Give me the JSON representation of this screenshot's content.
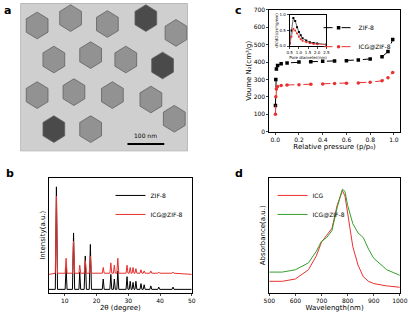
{
  "chart_data": [
    {
      "type": "image",
      "title": "a",
      "annotations": [
        "100 nm"
      ]
    },
    {
      "type": "line",
      "title": "b",
      "xlabel": "2θ (degree)",
      "ylabel": "Intensity(a.u.)",
      "xlim": [
        5,
        50
      ],
      "xticks": [
        10,
        20,
        30,
        40,
        50
      ],
      "ylim": [
        0,
        100
      ],
      "tick_labels": "x",
      "legend": "top-right",
      "x": [
        5,
        7.0,
        7.35,
        7.7,
        10.1,
        10.4,
        10.7,
        12.4,
        12.75,
        13.1,
        14.45,
        14.7,
        15.0,
        16.1,
        16.45,
        16.8,
        17.7,
        18.05,
        18.4,
        21.8,
        22.1,
        22.4,
        24.2,
        24.5,
        24.8,
        25.3,
        25.6,
        25.9,
        26.4,
        26.7,
        27.0,
        29.3,
        29.6,
        29.9,
        30.3,
        30.6,
        30.9,
        31.2,
        31.5,
        31.8,
        32.1,
        32.4,
        32.7,
        33.7,
        34.0,
        34.3,
        34.7,
        35.0,
        35.3,
        36.8,
        37.1,
        37.4,
        39.3,
        39.6,
        39.9,
        43.8,
        44.1,
        44.4,
        50
      ],
      "series": [
        {
          "name": "ZIF-8",
          "color": "#000000",
          "line_style": "solid",
          "values": [
            3,
            3,
            92,
            3,
            3,
            22,
            3,
            3,
            52,
            3,
            3,
            18,
            3,
            3,
            32,
            3,
            3,
            42,
            3,
            3,
            12,
            3,
            3,
            16,
            3,
            3,
            12,
            3,
            3,
            19,
            3,
            3,
            14,
            3,
            3,
            10,
            3,
            3,
            9,
            3,
            3,
            10,
            3,
            3,
            8,
            3,
            3,
            7,
            3,
            3,
            6,
            3,
            3,
            5,
            3,
            3,
            5,
            3,
            3
          ]
        },
        {
          "name": "ICG@ZIF-8",
          "color": "#e8312f",
          "line_style": "solid",
          "values": [
            16,
            17,
            84,
            17,
            17,
            30,
            17,
            17,
            45,
            17,
            17,
            24,
            17,
            17,
            28,
            17,
            17,
            32,
            17,
            17,
            22,
            17,
            17,
            26,
            17,
            17,
            24,
            17,
            17,
            30,
            17,
            17,
            24,
            17,
            17,
            22,
            17,
            17,
            22,
            17,
            17,
            21,
            17,
            17,
            20,
            17,
            17,
            19,
            17,
            17,
            19,
            17,
            17,
            18,
            17,
            17,
            18,
            17,
            16
          ]
        }
      ]
    },
    {
      "type": "scatter",
      "title": "c",
      "xlabel": "Relative pressure (p/p₀)",
      "ylabel": "Voume N₂(cm³/g)",
      "xlim": [
        -0.05,
        1.05
      ],
      "xticks": [
        {
          "value": 0,
          "label": "0.0"
        },
        0.2,
        0.4,
        0.6,
        0.8,
        {
          "value": 1,
          "label": "1.0"
        }
      ],
      "ylim": [
        0,
        700
      ],
      "yticks": [
        0,
        100,
        200,
        300,
        400,
        500,
        600,
        700
      ],
      "legend": "top-right",
      "x": [
        0.002,
        0.005,
        0.01,
        0.02,
        0.05,
        0.1,
        0.2,
        0.3,
        0.4,
        0.5,
        0.6,
        0.7,
        0.8,
        0.9,
        0.95,
        0.99
      ],
      "series": [
        {
          "name": "ZIF-8",
          "color": "#000000",
          "marker": "square",
          "line_style": "dash",
          "values": [
            150,
            300,
            360,
            380,
            390,
            395,
            400,
            402,
            404,
            406,
            408,
            412,
            418,
            430,
            460,
            530
          ]
        },
        {
          "name": "ICG@ZIF-8",
          "color": "#e8312f",
          "marker": "circle",
          "line_style": "dash",
          "values": [
            100,
            200,
            245,
            260,
            265,
            268,
            270,
            272,
            274,
            276,
            278,
            280,
            284,
            292,
            310,
            340
          ]
        }
      ]
    },
    {
      "type": "line",
      "xlabel": "Pore diameter(nm)",
      "ylabel": "dV/dD(cm³/g/nm)",
      "xlim": [
        0.5,
        2.5
      ],
      "xticks": [
        0.5,
        {
          "value": 1,
          "label": "1.0"
        },
        1.5,
        {
          "value": 2,
          "label": "2.0"
        },
        2.5
      ],
      "ylim": [
        0,
        1
      ],
      "yticks": [
        {
          "value": 0,
          "label": "0.0"
        },
        0.5,
        {
          "value": 1,
          "label": "1.0"
        }
      ],
      "x": [
        0.5,
        0.6,
        0.7,
        0.8,
        0.9,
        1.0,
        1.1,
        1.2,
        1.4,
        1.6,
        1.8,
        2.0,
        2.5
      ],
      "series": [
        {
          "color": "#000000",
          "marker": "square",
          "line_style": "solid",
          "values": [
            0.1,
            0.5,
            0.9,
            0.8,
            0.6,
            0.45,
            0.35,
            0.25,
            0.18,
            0.12,
            0.1,
            0.08,
            0.05
          ]
        },
        {
          "color": "#e8312f",
          "marker": "circle",
          "line_style": "solid",
          "values": [
            0.05,
            0.3,
            0.55,
            0.5,
            0.4,
            0.3,
            0.22,
            0.17,
            0.12,
            0.09,
            0.07,
            0.06,
            0.04
          ]
        }
      ]
    },
    {
      "type": "line",
      "title": "d",
      "xlabel": "Wavelength(nm)",
      "ylabel": "Absorbance(a.u.)",
      "xlim": [
        500,
        1000
      ],
      "xticks": [
        500,
        600,
        700,
        800,
        900,
        1000
      ],
      "ylim": [
        0,
        2.5
      ],
      "tick_labels": "x",
      "legend": "top-left",
      "x": [
        500,
        550,
        600,
        650,
        680,
        700,
        720,
        740,
        760,
        780,
        790,
        800,
        820,
        840,
        860,
        880,
        900,
        950,
        1000
      ],
      "series": [
        {
          "name": "ICG",
          "color": "#e8312f",
          "line_style": "solid",
          "values": [
            0.25,
            0.25,
            0.3,
            0.5,
            0.8,
            1.1,
            1.25,
            1.4,
            1.9,
            2.22,
            2.1,
            1.7,
            1.0,
            0.6,
            0.35,
            0.25,
            0.2,
            0.15,
            0.12
          ]
        },
        {
          "name": "ICG@ZIF-8",
          "color": "#33a02c",
          "line_style": "solid",
          "values": [
            0.45,
            0.45,
            0.5,
            0.65,
            0.9,
            1.12,
            1.2,
            1.35,
            1.85,
            2.25,
            2.2,
            1.9,
            1.5,
            1.3,
            1.2,
            0.95,
            0.75,
            0.5,
            0.38
          ]
        }
      ]
    }
  ]
}
